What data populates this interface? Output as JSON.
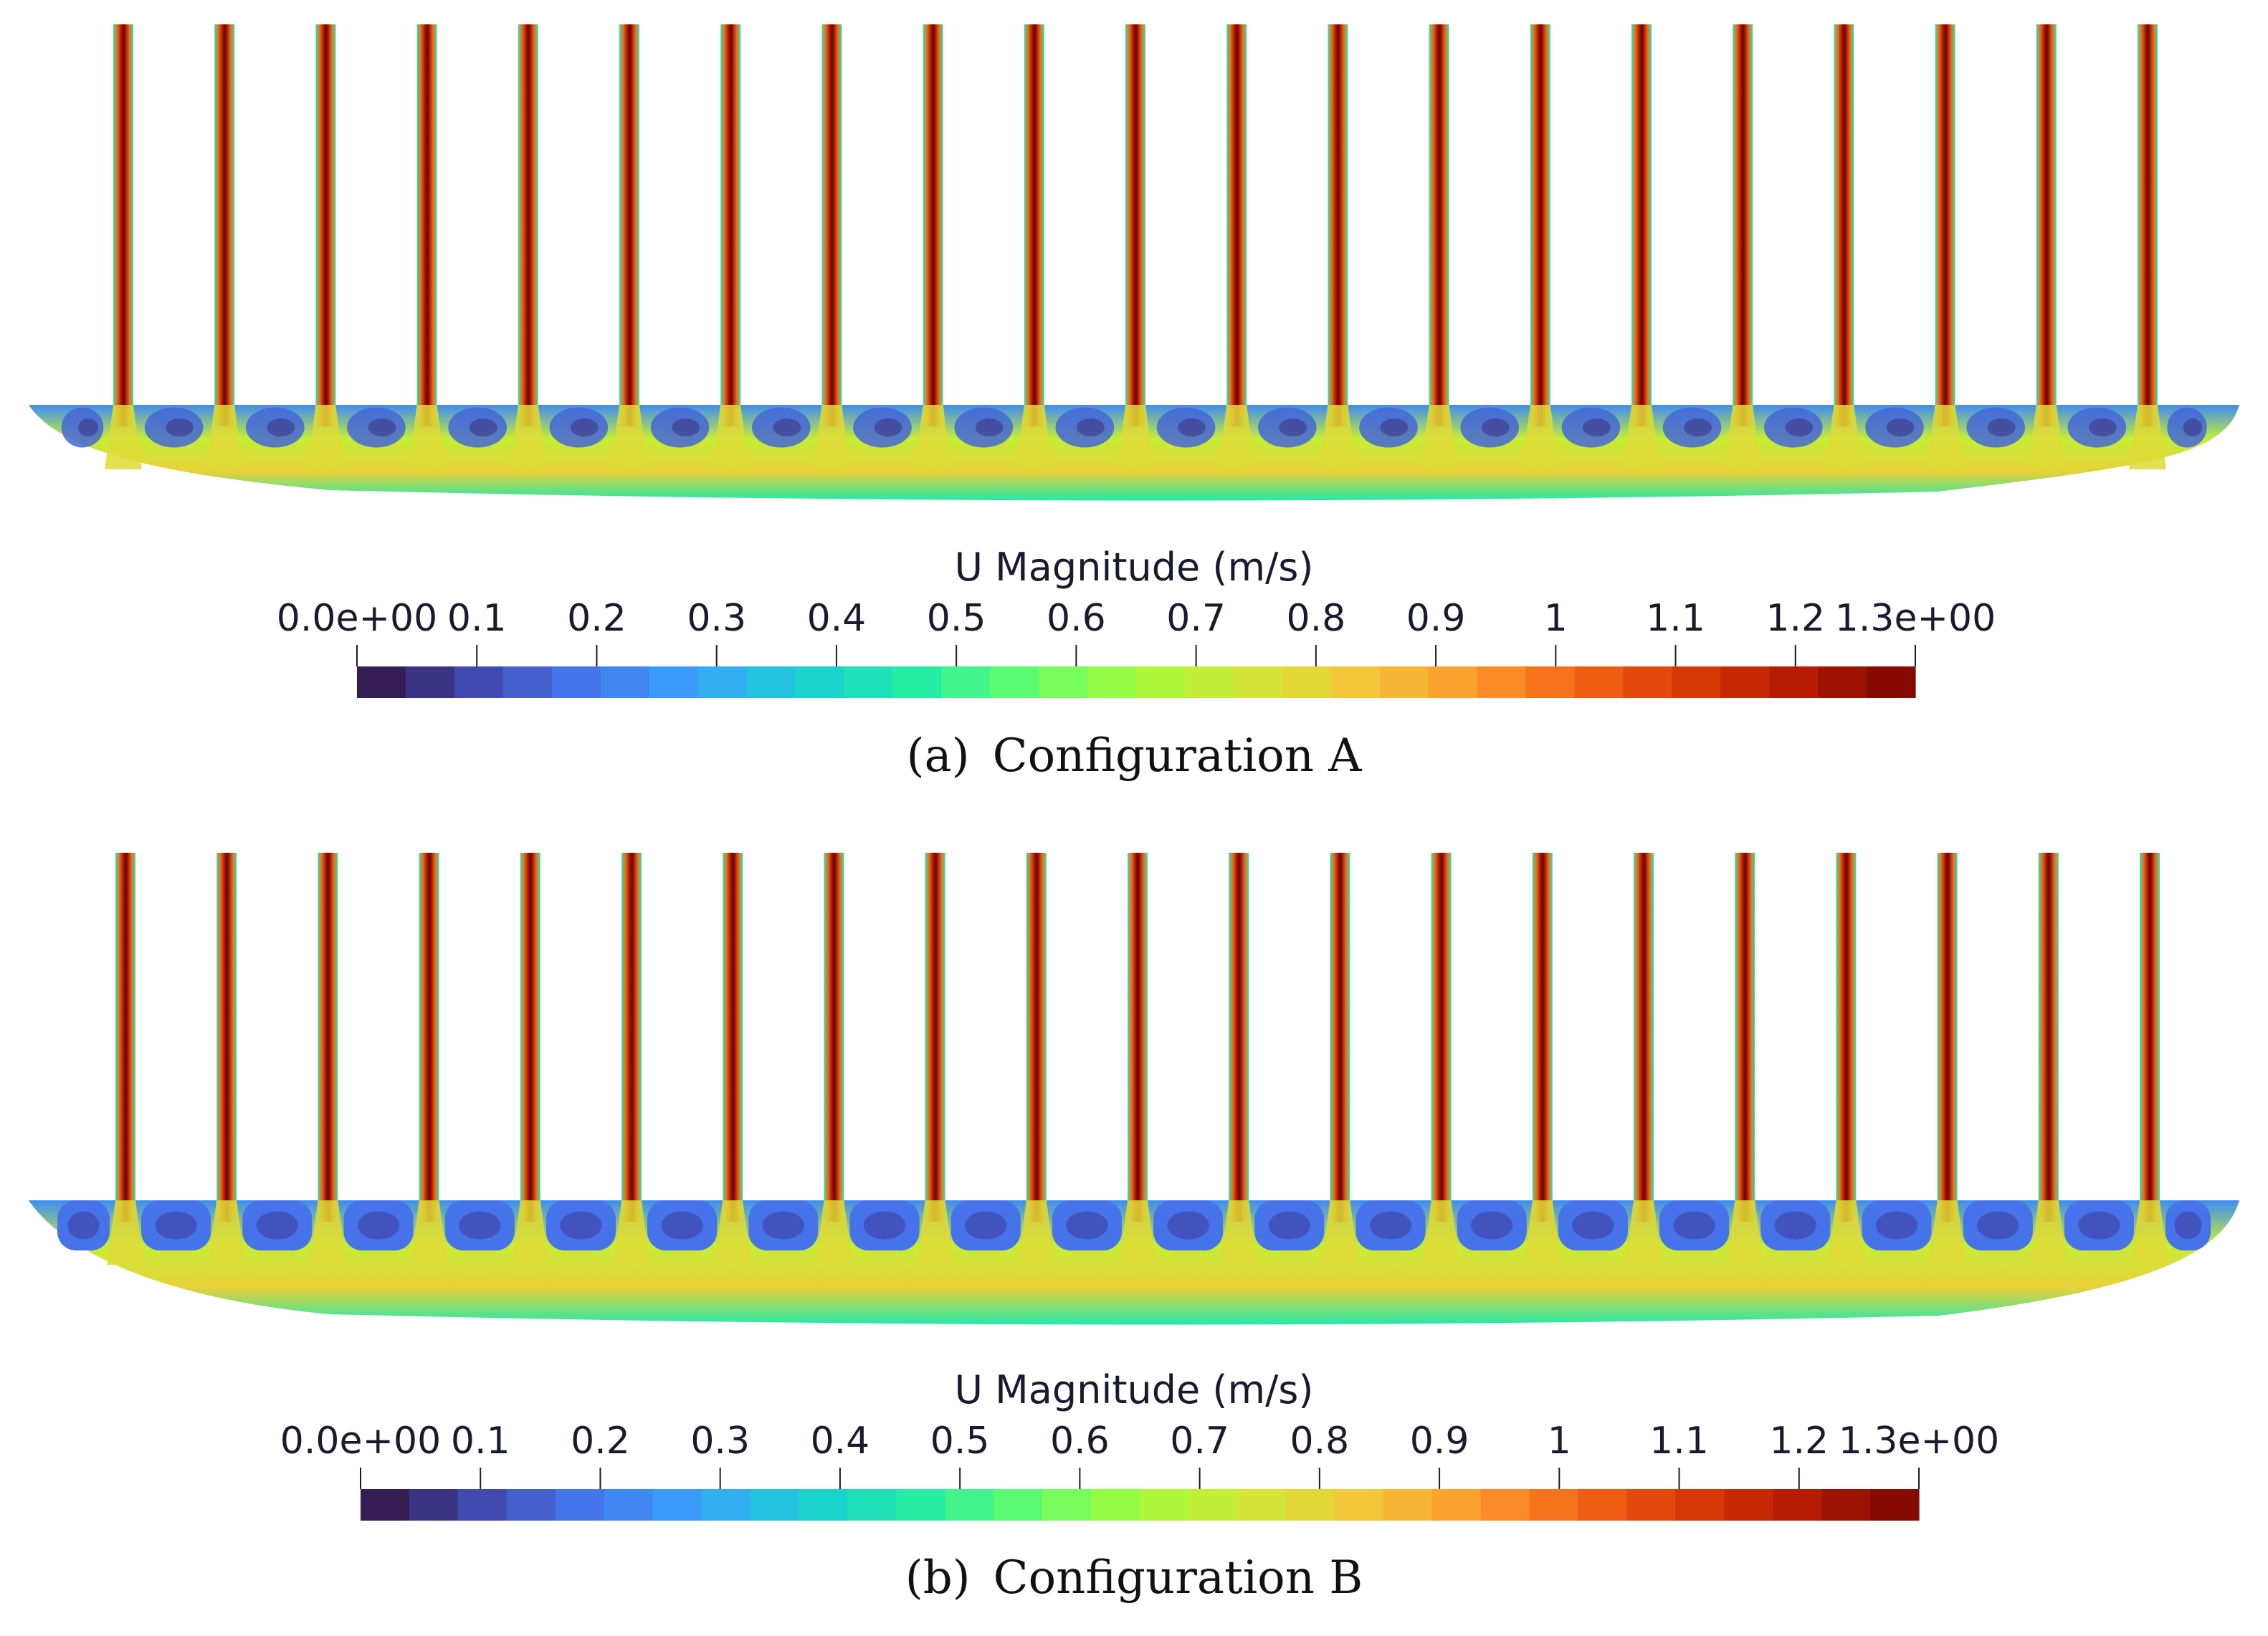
{
  "panels": [
    {
      "id": "A",
      "caption": "(a) Configuration A",
      "tube_count": 21,
      "cavity_style": "flat",
      "colorbar": {
        "title": "U Magnitude (m/s)",
        "ticks": [
          "0.0e+00",
          "0.1",
          "0.2",
          "0.3",
          "0.4",
          "0.5",
          "0.6",
          "0.7",
          "0.8",
          "0.9",
          "1",
          "1.1",
          "1.2",
          "1.3e+00"
        ],
        "values": [
          0,
          0.1,
          0.2,
          0.3,
          0.4,
          0.5,
          0.6,
          0.7,
          0.8,
          0.9,
          1.0,
          1.1,
          1.2,
          1.3
        ]
      }
    },
    {
      "id": "B",
      "caption": "(b) Configuration B",
      "tube_count": 21,
      "cavity_style": "baffled",
      "colorbar": {
        "title": "U Magnitude (m/s)",
        "ticks": [
          "0.0e+00",
          "0.1",
          "0.2",
          "0.3",
          "0.4",
          "0.5",
          "0.6",
          "0.7",
          "0.8",
          "0.9",
          "1",
          "1.1",
          "1.2",
          "1.3e+00"
        ],
        "values": [
          0,
          0.1,
          0.2,
          0.3,
          0.4,
          0.5,
          0.6,
          0.7,
          0.8,
          0.9,
          1.0,
          1.1,
          1.2,
          1.3
        ]
      }
    }
  ],
  "colormap": {
    "range": [
      0,
      1.3
    ],
    "bands": 32,
    "stops": [
      "#30123b",
      "#4145ab",
      "#4675ed",
      "#39a2fc",
      "#1bcfd4",
      "#24eca6",
      "#61fc6c",
      "#a4fc3b",
      "#d1e834",
      "#f3c63a",
      "#fe9b2d",
      "#f36315",
      "#d93806",
      "#b11901",
      "#7a0402"
    ]
  }
}
